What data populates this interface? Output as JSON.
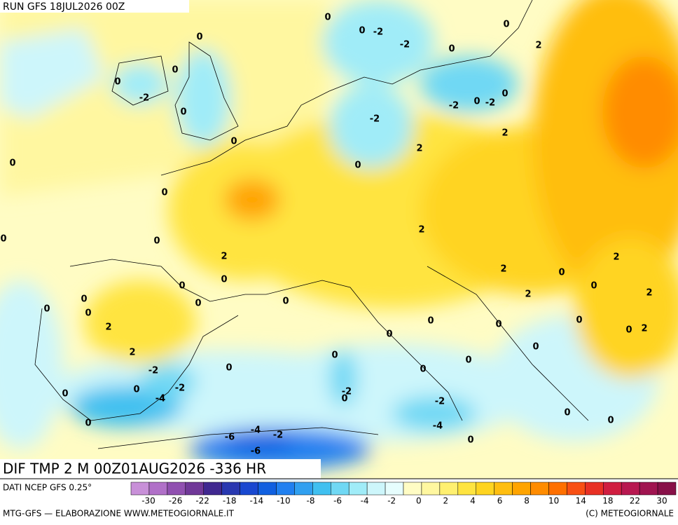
{
  "header": {
    "run": "RUN GFS 18JUL2026 00Z"
  },
  "map": {
    "title": "DIF TMP 2 M 00Z01AUG2026 -336 HR",
    "contour_labels": [
      0,
      0,
      -2,
      -2,
      0,
      0,
      2,
      0,
      0,
      0,
      -2,
      0,
      0,
      0,
      -2,
      -2,
      0,
      -2,
      0,
      2,
      2,
      0,
      0,
      0,
      0,
      2,
      2,
      0,
      0,
      0,
      0,
      0,
      0,
      0,
      2,
      2,
      -2,
      -2,
      0,
      -4,
      0,
      0,
      0,
      0,
      -2,
      0,
      0,
      0,
      0,
      0,
      0,
      2,
      2,
      0,
      0,
      2,
      2,
      0,
      0,
      2,
      0,
      -2,
      -4,
      0,
      0,
      0,
      -4,
      -6,
      -2,
      -6
    ]
  },
  "legend": {
    "source": "DATI NCEP GFS 0.25°",
    "colors": [
      "#c890d8",
      "#b070c8",
      "#9050b0",
      "#703898",
      "#402890",
      "#2838b0",
      "#1848d0",
      "#1060e0",
      "#2080f0",
      "#30a0f0",
      "#40c0f0",
      "#70d8f4",
      "#a0ecf8",
      "#cdf6fb",
      "#e6fdfd",
      "#fffcc4",
      "#fff7a0",
      "#fff070",
      "#ffe440",
      "#ffd420",
      "#ffbe10",
      "#ffa400",
      "#ff8c00",
      "#ff7000",
      "#f85014",
      "#e83024",
      "#d01e40",
      "#b81850",
      "#a01450",
      "#881048"
    ],
    "ticks": [
      -30,
      -26,
      -22,
      -18,
      -14,
      -10,
      -8,
      -6,
      -4,
      -2,
      0,
      2,
      4,
      6,
      8,
      10,
      14,
      18,
      22,
      30
    ]
  },
  "footer": {
    "credit": "MTG-GFS — ELABORAZIONE WWW.METEOGIORNALE.IT",
    "copyright": "(C) METEOGIORNALE"
  }
}
